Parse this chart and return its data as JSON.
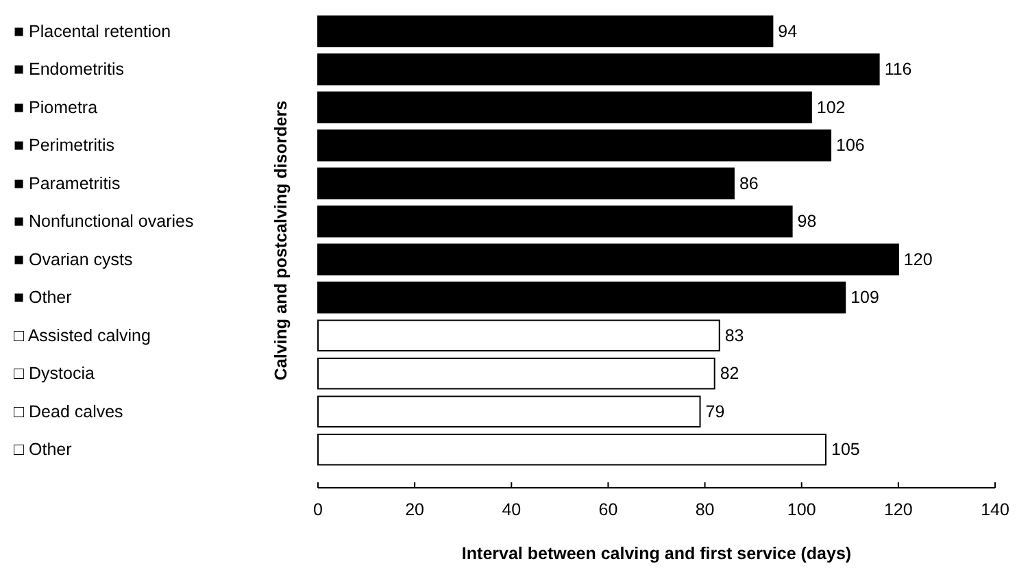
{
  "chart_data": {
    "type": "bar",
    "orientation": "horizontal",
    "xlabel": "Interval between calving and first service (days)",
    "ylabel": "Calving and postcalving disorders",
    "categories": [
      "■ Placental retention",
      "■ Endometritis",
      "■ Piometra",
      "■ Perimetritis",
      "■ Parametritis",
      "■ Nonfunctional ovaries",
      "■ Ovarian cysts",
      "■ Other",
      "□ Assisted calving",
      "□ Dystocia",
      "□ Dead calves",
      "□ Other"
    ],
    "values": [
      94,
      116,
      102,
      106,
      86,
      98,
      120,
      109,
      83,
      82,
      79,
      105
    ],
    "colors": [
      "#000000",
      "#000000",
      "#000000",
      "#000000",
      "#000000",
      "#000000",
      "#000000",
      "#000000",
      "#ffffff",
      "#ffffff",
      "#ffffff",
      "#ffffff"
    ],
    "xlim": [
      0,
      140
    ],
    "xticks": [
      0,
      20,
      40,
      60,
      80,
      100,
      120,
      140
    ],
    "data_labels": true
  }
}
